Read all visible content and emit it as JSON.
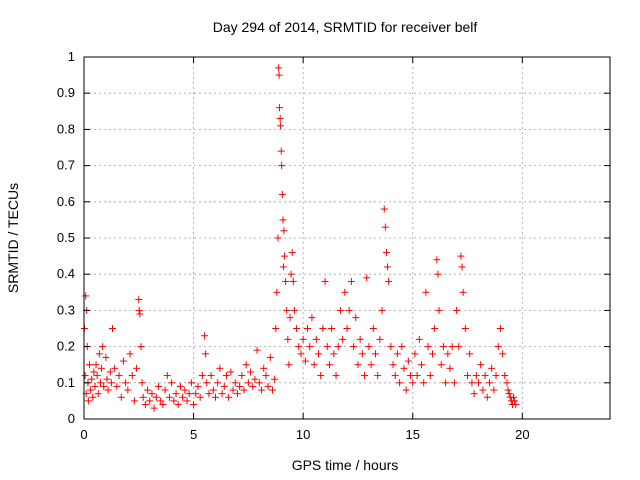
{
  "chart_data": {
    "type": "scatter",
    "title": "Day 294 of 2014, SRMTID for receiver belf",
    "xlabel": "GPS time / hours",
    "ylabel": "SRMTID / TECUs",
    "xlim": [
      0,
      24
    ],
    "ylim": [
      0,
      1
    ],
    "xticks": [
      0,
      5,
      10,
      15,
      20
    ],
    "yticks": [
      0,
      0.1,
      0.2,
      0.3,
      0.4,
      0.5,
      0.6,
      0.7,
      0.8,
      0.9,
      1
    ],
    "xtick_labels": [
      "0",
      "5",
      "10",
      "15",
      "20"
    ],
    "ytick_labels": [
      "0",
      "0.1",
      "0.2",
      "0.3",
      "0.4",
      "0.5",
      "0.6",
      "0.7",
      "0.8",
      "0.9",
      "1"
    ],
    "grid": true,
    "marker": "+",
    "color": "#ff0000",
    "series": [
      {
        "name": "belf",
        "points": [
          [
            0.02,
            0.25
          ],
          [
            0.05,
            0.12
          ],
          [
            0.08,
            0.34
          ],
          [
            0.1,
            0.07
          ],
          [
            0.12,
            0.3
          ],
          [
            0.15,
            0.2
          ],
          [
            0.18,
            0.1
          ],
          [
            0.2,
            0.05
          ],
          [
            0.25,
            0.15
          ],
          [
            0.3,
            0.08
          ],
          [
            0.35,
            0.11
          ],
          [
            0.4,
            0.06
          ],
          [
            0.45,
            0.13
          ],
          [
            0.5,
            0.09
          ],
          [
            0.55,
            0.15
          ],
          [
            0.6,
            0.12
          ],
          [
            0.65,
            0.07
          ],
          [
            0.7,
            0.18
          ],
          [
            0.75,
            0.1
          ],
          [
            0.8,
            0.14
          ],
          [
            0.85,
            0.2
          ],
          [
            0.9,
            0.09
          ],
          [
            1.0,
            0.17
          ],
          [
            1.05,
            0.11
          ],
          [
            1.1,
            0.08
          ],
          [
            1.2,
            0.13
          ],
          [
            1.25,
            0.1
          ],
          [
            1.3,
            0.25
          ],
          [
            1.4,
            0.14
          ],
          [
            1.5,
            0.09
          ],
          [
            1.6,
            0.12
          ],
          [
            1.7,
            0.06
          ],
          [
            1.8,
            0.16
          ],
          [
            1.9,
            0.1
          ],
          [
            2.0,
            0.08
          ],
          [
            2.1,
            0.18
          ],
          [
            2.2,
            0.12
          ],
          [
            2.3,
            0.05
          ],
          [
            2.4,
            0.14
          ],
          [
            2.5,
            0.33
          ],
          [
            2.52,
            0.3
          ],
          [
            2.55,
            0.29
          ],
          [
            2.6,
            0.2
          ],
          [
            2.65,
            0.1
          ],
          [
            2.7,
            0.06
          ],
          [
            2.8,
            0.04
          ],
          [
            2.9,
            0.08
          ],
          [
            3.0,
            0.05
          ],
          [
            3.1,
            0.07
          ],
          [
            3.2,
            0.03
          ],
          [
            3.3,
            0.06
          ],
          [
            3.4,
            0.09
          ],
          [
            3.5,
            0.05
          ],
          [
            3.6,
            0.04
          ],
          [
            3.7,
            0.08
          ],
          [
            3.8,
            0.12
          ],
          [
            3.9,
            0.06
          ],
          [
            4.0,
            0.1
          ],
          [
            4.1,
            0.05
          ],
          [
            4.2,
            0.07
          ],
          [
            4.3,
            0.04
          ],
          [
            4.4,
            0.09
          ],
          [
            4.5,
            0.06
          ],
          [
            4.6,
            0.08
          ],
          [
            4.7,
            0.05
          ],
          [
            4.8,
            0.07
          ],
          [
            4.9,
            0.1
          ],
          [
            5.0,
            0.04
          ],
          [
            5.1,
            0.07
          ],
          [
            5.2,
            0.09
          ],
          [
            5.3,
            0.06
          ],
          [
            5.4,
            0.12
          ],
          [
            5.5,
            0.23
          ],
          [
            5.55,
            0.18
          ],
          [
            5.6,
            0.1
          ],
          [
            5.7,
            0.07
          ],
          [
            5.8,
            0.12
          ],
          [
            5.9,
            0.08
          ],
          [
            6.0,
            0.06
          ],
          [
            6.1,
            0.1
          ],
          [
            6.2,
            0.14
          ],
          [
            6.3,
            0.07
          ],
          [
            6.4,
            0.09
          ],
          [
            6.5,
            0.12
          ],
          [
            6.6,
            0.06
          ],
          [
            6.7,
            0.13
          ],
          [
            6.8,
            0.08
          ],
          [
            6.9,
            0.1
          ],
          [
            7.0,
            0.07
          ],
          [
            7.1,
            0.09
          ],
          [
            7.2,
            0.12
          ],
          [
            7.3,
            0.08
          ],
          [
            7.4,
            0.15
          ],
          [
            7.5,
            0.1
          ],
          [
            7.6,
            0.13
          ],
          [
            7.7,
            0.09
          ],
          [
            7.8,
            0.11
          ],
          [
            7.9,
            0.19
          ],
          [
            8.0,
            0.1
          ],
          [
            8.1,
            0.08
          ],
          [
            8.2,
            0.14
          ],
          [
            8.3,
            0.12
          ],
          [
            8.4,
            0.09
          ],
          [
            8.5,
            0.17
          ],
          [
            8.6,
            0.08
          ],
          [
            8.7,
            0.11
          ],
          [
            8.75,
            0.25
          ],
          [
            8.8,
            0.35
          ],
          [
            8.85,
            0.5
          ],
          [
            8.88,
            0.97
          ],
          [
            8.9,
            0.95
          ],
          [
            8.92,
            0.86
          ],
          [
            8.95,
            0.83
          ],
          [
            8.97,
            0.81
          ],
          [
            9.0,
            0.74
          ],
          [
            9.02,
            0.7
          ],
          [
            9.05,
            0.62
          ],
          [
            9.08,
            0.55
          ],
          [
            9.1,
            0.42
          ],
          [
            9.12,
            0.52
          ],
          [
            9.15,
            0.45
          ],
          [
            9.2,
            0.38
          ],
          [
            9.25,
            0.3
          ],
          [
            9.3,
            0.22
          ],
          [
            9.35,
            0.15
          ],
          [
            9.4,
            0.28
          ],
          [
            9.45,
            0.4
          ],
          [
            9.5,
            0.46
          ],
          [
            9.55,
            0.38
          ],
          [
            9.6,
            0.3
          ],
          [
            9.7,
            0.25
          ],
          [
            9.8,
            0.2
          ],
          [
            9.9,
            0.18
          ],
          [
            10.0,
            0.22
          ],
          [
            10.1,
            0.16
          ],
          [
            10.2,
            0.25
          ],
          [
            10.3,
            0.2
          ],
          [
            10.4,
            0.28
          ],
          [
            10.5,
            0.15
          ],
          [
            10.6,
            0.22
          ],
          [
            10.7,
            0.18
          ],
          [
            10.8,
            0.12
          ],
          [
            10.9,
            0.25
          ],
          [
            11.0,
            0.38
          ],
          [
            11.1,
            0.2
          ],
          [
            11.2,
            0.15
          ],
          [
            11.3,
            0.25
          ],
          [
            11.4,
            0.18
          ],
          [
            11.5,
            0.12
          ],
          [
            11.6,
            0.2
          ],
          [
            11.7,
            0.3
          ],
          [
            11.8,
            0.22
          ],
          [
            11.9,
            0.35
          ],
          [
            12.0,
            0.25
          ],
          [
            12.1,
            0.3
          ],
          [
            12.2,
            0.38
          ],
          [
            12.3,
            0.2
          ],
          [
            12.4,
            0.28
          ],
          [
            12.5,
            0.15
          ],
          [
            12.6,
            0.22
          ],
          [
            12.7,
            0.18
          ],
          [
            12.8,
            0.12
          ],
          [
            12.9,
            0.39
          ],
          [
            13.0,
            0.2
          ],
          [
            13.1,
            0.15
          ],
          [
            13.2,
            0.25
          ],
          [
            13.3,
            0.18
          ],
          [
            13.4,
            0.12
          ],
          [
            13.5,
            0.22
          ],
          [
            13.6,
            0.3
          ],
          [
            13.7,
            0.58
          ],
          [
            13.75,
            0.53
          ],
          [
            13.8,
            0.46
          ],
          [
            13.85,
            0.42
          ],
          [
            13.9,
            0.38
          ],
          [
            14.0,
            0.2
          ],
          [
            14.1,
            0.15
          ],
          [
            14.2,
            0.12
          ],
          [
            14.3,
            0.18
          ],
          [
            14.4,
            0.1
          ],
          [
            14.5,
            0.2
          ],
          [
            14.6,
            0.14
          ],
          [
            14.7,
            0.08
          ],
          [
            14.8,
            0.16
          ],
          [
            14.9,
            0.12
          ],
          [
            15.0,
            0.1
          ],
          [
            15.1,
            0.18
          ],
          [
            15.2,
            0.12
          ],
          [
            15.3,
            0.22
          ],
          [
            15.4,
            0.15
          ],
          [
            15.5,
            0.1
          ],
          [
            15.6,
            0.35
          ],
          [
            15.7,
            0.2
          ],
          [
            15.8,
            0.12
          ],
          [
            15.9,
            0.18
          ],
          [
            16.0,
            0.25
          ],
          [
            16.1,
            0.44
          ],
          [
            16.15,
            0.4
          ],
          [
            16.2,
            0.3
          ],
          [
            16.3,
            0.15
          ],
          [
            16.4,
            0.2
          ],
          [
            16.5,
            0.1
          ],
          [
            16.6,
            0.18
          ],
          [
            16.7,
            0.14
          ],
          [
            16.8,
            0.2
          ],
          [
            16.9,
            0.1
          ],
          [
            17.0,
            0.3
          ],
          [
            17.1,
            0.2
          ],
          [
            17.2,
            0.45
          ],
          [
            17.25,
            0.42
          ],
          [
            17.3,
            0.35
          ],
          [
            17.4,
            0.25
          ],
          [
            17.5,
            0.12
          ],
          [
            17.6,
            0.18
          ],
          [
            17.7,
            0.1
          ],
          [
            17.8,
            0.07
          ],
          [
            17.9,
            0.12
          ],
          [
            18.0,
            0.1
          ],
          [
            18.1,
            0.15
          ],
          [
            18.2,
            0.08
          ],
          [
            18.3,
            0.12
          ],
          [
            18.4,
            0.06
          ],
          [
            18.5,
            0.1
          ],
          [
            18.6,
            0.14
          ],
          [
            18.7,
            0.08
          ],
          [
            18.8,
            0.12
          ],
          [
            18.9,
            0.2
          ],
          [
            19.0,
            0.25
          ],
          [
            19.1,
            0.18
          ],
          [
            19.2,
            0.12
          ],
          [
            19.3,
            0.1
          ],
          [
            19.35,
            0.08
          ],
          [
            19.4,
            0.07
          ],
          [
            19.45,
            0.06
          ],
          [
            19.5,
            0.05
          ],
          [
            19.55,
            0.04
          ],
          [
            19.6,
            0.06
          ],
          [
            19.65,
            0.05
          ],
          [
            19.7,
            0.04
          ]
        ]
      }
    ]
  }
}
